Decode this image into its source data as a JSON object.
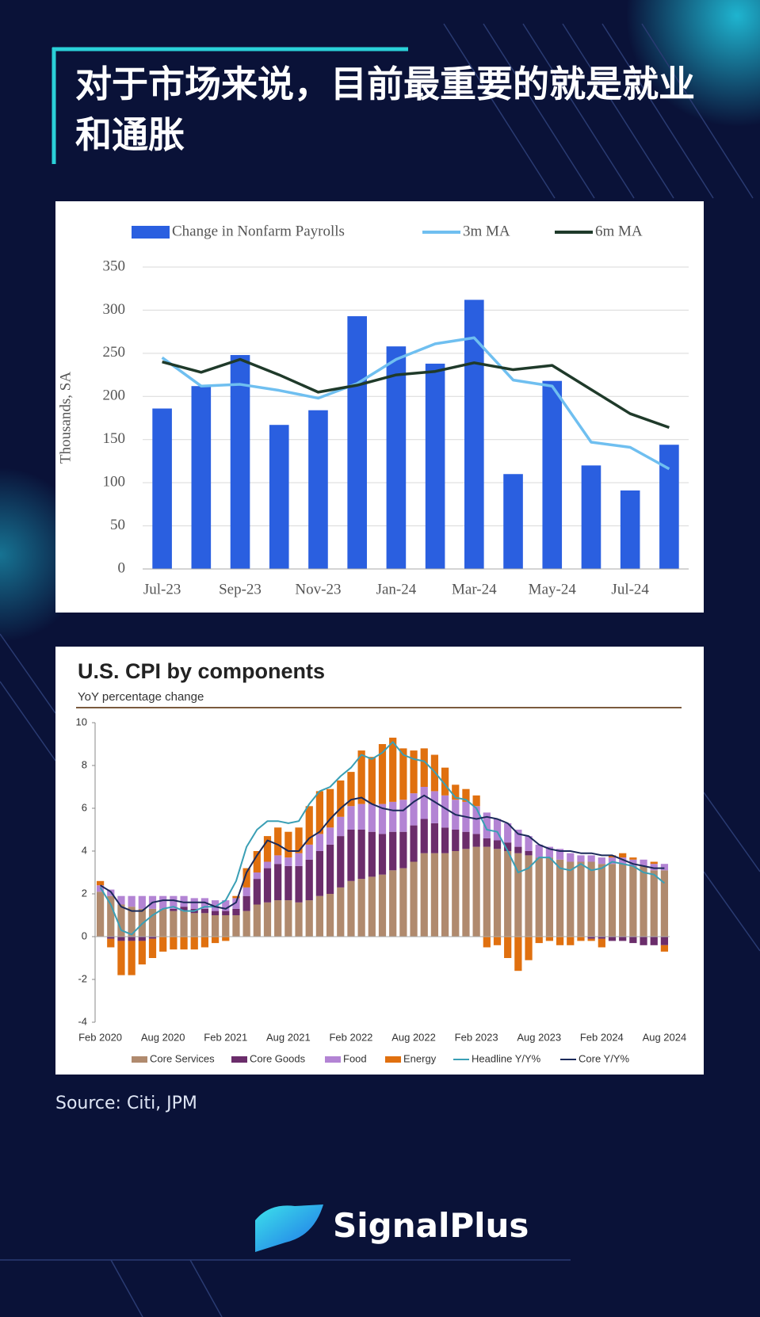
{
  "header": {
    "title": "对于市场来说，目前最重要的就是就业和通胀"
  },
  "footer": {
    "source": "Source: Citi, JPM",
    "brand": "SignalPlus"
  },
  "chart_data": [
    {
      "type": "bar",
      "ylabel": "Thousands, SA",
      "categories": [
        "Jul-23",
        null,
        "Sep-23",
        null,
        "Nov-23",
        null,
        "Jan-24",
        null,
        "Mar-24",
        null,
        "May-24",
        null,
        "Jul-24",
        null
      ],
      "series": [
        {
          "name": "Change in Nonfarm Payrolls",
          "type": "bar",
          "color": "#2a5fe0",
          "values": [
            186,
            212,
            248,
            167,
            184,
            293,
            258,
            238,
            312,
            110,
            218,
            120,
            91,
            144
          ]
        },
        {
          "name": "3m MA",
          "type": "line",
          "color": "#6fbff0",
          "values": [
            245,
            212,
            214,
            207,
            198,
            215,
            243,
            261,
            268,
            219,
            212,
            147,
            141,
            116
          ]
        },
        {
          "name": "6m MA",
          "type": "line",
          "color": "#1f3a2a",
          "values": [
            240,
            228,
            243,
            225,
            205,
            213,
            225,
            229,
            239,
            231,
            236,
            208,
            180,
            164
          ]
        }
      ],
      "ylim": [
        0,
        350
      ],
      "yticks": [
        0,
        50,
        100,
        150,
        200,
        250,
        300,
        350
      ],
      "grid": true,
      "stacked": false,
      "legend": "top"
    },
    {
      "type": "bar",
      "title": "U.S. CPI by components",
      "subtitle": "YoY percentage change",
      "categories": [
        "Feb 2020",
        null,
        null,
        null,
        null,
        null,
        "Aug 2020",
        null,
        null,
        null,
        null,
        null,
        "Feb 2021",
        null,
        null,
        null,
        null,
        null,
        "Aug 2021",
        null,
        null,
        null,
        null,
        null,
        "Feb 2022",
        null,
        null,
        null,
        null,
        null,
        "Aug 2022",
        null,
        null,
        null,
        null,
        null,
        "Feb 2023",
        null,
        null,
        null,
        null,
        null,
        "Aug 2023",
        null,
        null,
        null,
        null,
        null,
        "Feb 2024",
        null,
        null,
        null,
        null,
        null,
        "Aug 2024"
      ],
      "series": [
        {
          "name": "Core Services",
          "type": "bar",
          "color": "#b08a6e",
          "values": [
            2.1,
            1.9,
            1.5,
            1.4,
            1.3,
            1.3,
            1.3,
            1.2,
            1.2,
            1.1,
            1.1,
            1.0,
            1.0,
            1.0,
            1.2,
            1.5,
            1.6,
            1.7,
            1.7,
            1.6,
            1.7,
            1.9,
            2.0,
            2.3,
            2.6,
            2.7,
            2.8,
            2.9,
            3.1,
            3.2,
            3.5,
            3.9,
            3.9,
            3.9,
            4.0,
            4.1,
            4.2,
            4.2,
            4.1,
            4.0,
            3.9,
            3.8,
            3.7,
            3.7,
            3.6,
            3.5,
            3.5,
            3.5,
            3.4,
            3.4,
            3.4,
            3.3,
            3.3,
            3.1,
            3.1
          ]
        },
        {
          "name": "Core Goods",
          "type": "bar",
          "color": "#6b2d6b",
          "values": [
            0.0,
            -0.1,
            -0.2,
            -0.2,
            -0.2,
            -0.1,
            0.0,
            0.1,
            0.2,
            0.2,
            0.2,
            0.2,
            0.2,
            0.3,
            0.7,
            1.2,
            1.6,
            1.7,
            1.6,
            1.7,
            1.9,
            2.1,
            2.3,
            2.4,
            2.4,
            2.3,
            2.1,
            1.9,
            1.8,
            1.7,
            1.7,
            1.6,
            1.4,
            1.2,
            1.0,
            0.8,
            0.6,
            0.4,
            0.4,
            0.4,
            0.3,
            0.2,
            0.0,
            0.0,
            0.0,
            0.0,
            0.0,
            -0.1,
            -0.1,
            -0.2,
            -0.2,
            -0.3,
            -0.4,
            -0.4,
            -0.4
          ]
        },
        {
          "name": "Food",
          "type": "bar",
          "color": "#b384d4",
          "values": [
            0.3,
            0.3,
            0.4,
            0.5,
            0.6,
            0.6,
            0.6,
            0.6,
            0.5,
            0.5,
            0.5,
            0.5,
            0.5,
            0.5,
            0.4,
            0.3,
            0.3,
            0.4,
            0.4,
            0.6,
            0.7,
            0.8,
            0.8,
            0.9,
            1.1,
            1.2,
            1.3,
            1.4,
            1.4,
            1.5,
            1.5,
            1.5,
            1.5,
            1.5,
            1.4,
            1.4,
            1.3,
            1.2,
            1.0,
            0.9,
            0.8,
            0.7,
            0.6,
            0.5,
            0.5,
            0.4,
            0.3,
            0.3,
            0.3,
            0.3,
            0.3,
            0.3,
            0.3,
            0.3,
            0.3
          ]
        },
        {
          "name": "Energy",
          "type": "bar",
          "color": "#e0700f",
          "values": [
            0.2,
            -0.4,
            -1.6,
            -1.6,
            -1.1,
            -0.9,
            -0.7,
            -0.6,
            -0.6,
            -0.6,
            -0.5,
            -0.3,
            -0.2,
            0.1,
            0.9,
            1.0,
            1.2,
            1.3,
            1.2,
            1.2,
            1.8,
            2.0,
            1.8,
            1.7,
            1.6,
            2.5,
            2.2,
            2.8,
            3.0,
            2.4,
            2.0,
            1.8,
            1.7,
            1.3,
            0.7,
            0.6,
            0.5,
            -0.5,
            -0.4,
            -1.0,
            -1.6,
            -1.1,
            -0.3,
            -0.2,
            -0.4,
            -0.4,
            -0.2,
            -0.1,
            -0.4,
            0.1,
            0.2,
            0.1,
            0.0,
            0.1,
            -0.3
          ]
        },
        {
          "name": "Headline Y/Y%",
          "type": "line",
          "color": "#3a9fb5",
          "values": [
            2.3,
            1.5,
            0.3,
            0.1,
            0.6,
            1.0,
            1.3,
            1.4,
            1.2,
            1.2,
            1.4,
            1.4,
            1.7,
            2.6,
            4.2,
            5.0,
            5.4,
            5.4,
            5.3,
            5.4,
            6.2,
            6.8,
            7.0,
            7.5,
            7.9,
            8.5,
            8.3,
            8.6,
            9.1,
            8.5,
            8.3,
            8.2,
            7.7,
            7.1,
            6.5,
            6.4,
            6.0,
            5.0,
            4.9,
            4.0,
            3.0,
            3.2,
            3.7,
            3.7,
            3.2,
            3.1,
            3.4,
            3.1,
            3.2,
            3.5,
            3.4,
            3.3,
            3.0,
            2.9,
            2.5
          ]
        },
        {
          "name": "Core Y/Y%",
          "type": "line",
          "color": "#1b2a5a",
          "values": [
            2.4,
            2.1,
            1.4,
            1.2,
            1.2,
            1.6,
            1.7,
            1.7,
            1.6,
            1.6,
            1.6,
            1.4,
            1.3,
            1.6,
            3.0,
            3.8,
            4.5,
            4.3,
            4.0,
            4.0,
            4.6,
            4.9,
            5.5,
            6.0,
            6.4,
            6.5,
            6.2,
            6.0,
            5.9,
            5.9,
            6.3,
            6.6,
            6.3,
            6.0,
            5.7,
            5.6,
            5.5,
            5.6,
            5.5,
            5.3,
            4.8,
            4.7,
            4.3,
            4.1,
            4.0,
            4.0,
            3.9,
            3.9,
            3.8,
            3.8,
            3.6,
            3.4,
            3.3,
            3.2,
            3.2
          ]
        }
      ],
      "ylim": [
        -4,
        10
      ],
      "yticks": [
        -4,
        -2,
        0,
        2,
        4,
        6,
        8,
        10
      ],
      "grid": false,
      "stacked": true,
      "legend": "bottom"
    }
  ]
}
